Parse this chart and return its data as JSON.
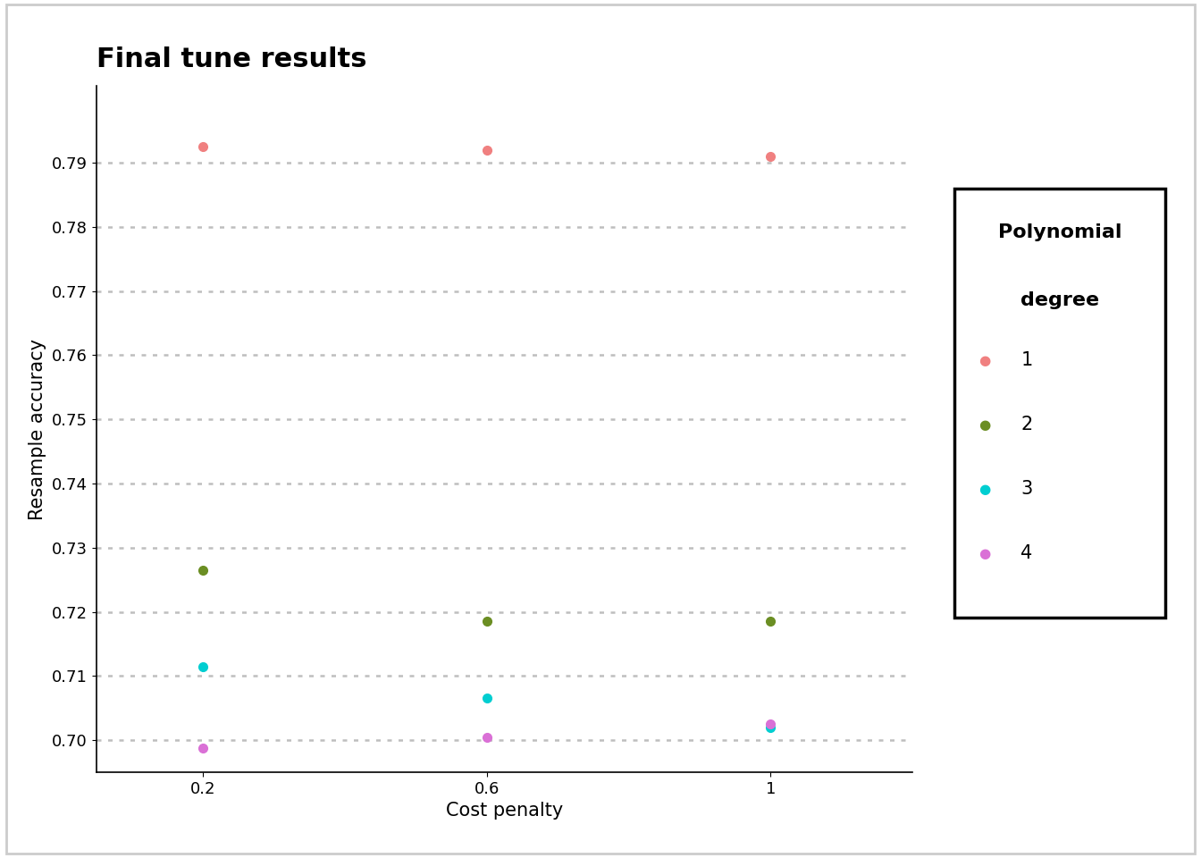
{
  "title": "Final tune results",
  "xlabel": "Cost penalty",
  "ylabel": "Resample accuracy",
  "x_values": [
    0.2,
    0.6,
    1.0
  ],
  "series": [
    {
      "label": "1",
      "color": "#F08080",
      "y_values": [
        0.7925,
        0.792,
        0.791
      ]
    },
    {
      "label": "2",
      "color": "#6B8E23",
      "y_values": [
        0.7265,
        0.7185,
        0.7185
      ]
    },
    {
      "label": "3",
      "color": "#00CED1",
      "y_values": [
        0.7115,
        0.7065,
        0.702
      ]
    },
    {
      "label": "4",
      "color": "#DA70D6",
      "y_values": [
        0.6988,
        0.7005,
        0.7025
      ]
    }
  ],
  "ylim": [
    0.695,
    0.802
  ],
  "yticks": [
    0.7,
    0.71,
    0.72,
    0.73,
    0.74,
    0.75,
    0.76,
    0.77,
    0.78,
    0.79
  ],
  "xticks": [
    0.2,
    0.6,
    1.0
  ],
  "xtick_labels": [
    "0.2",
    "0.6",
    "1"
  ],
  "legend_title_line1": "Polynomial",
  "legend_title_line2": "degree",
  "marker_size": 7,
  "background_color": "#FFFFFF",
  "plot_bg_color": "#FFFFFF",
  "grid_color": "#BEBEBE",
  "title_fontsize": 22,
  "axis_label_fontsize": 15,
  "tick_fontsize": 13,
  "legend_fontsize": 15,
  "legend_title_fontsize": 16
}
